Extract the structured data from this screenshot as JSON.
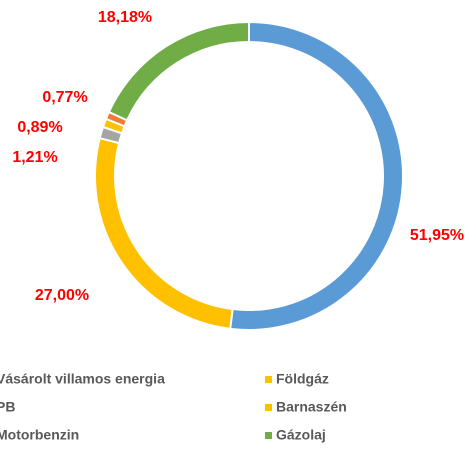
{
  "chart_data": {
    "type": "donut",
    "categories": [
      "Vásárolt villamos energia",
      "Földgáz",
      "PB",
      "Barnaszén",
      "Motorbenzin",
      "Gázolaj"
    ],
    "values": [
      51.95,
      27.0,
      1.21,
      0.89,
      0.77,
      18.18
    ],
    "value_labels": [
      "51,95%",
      "27,00%",
      "1,21%",
      "0,89%",
      "0,77%",
      "18,18%"
    ],
    "colors": [
      "#5b9bd5",
      "#ffc000",
      "#a5a5a5",
      "#ffc000",
      "#ed7d31",
      "#70ad47"
    ],
    "legend": "bottom"
  }
}
